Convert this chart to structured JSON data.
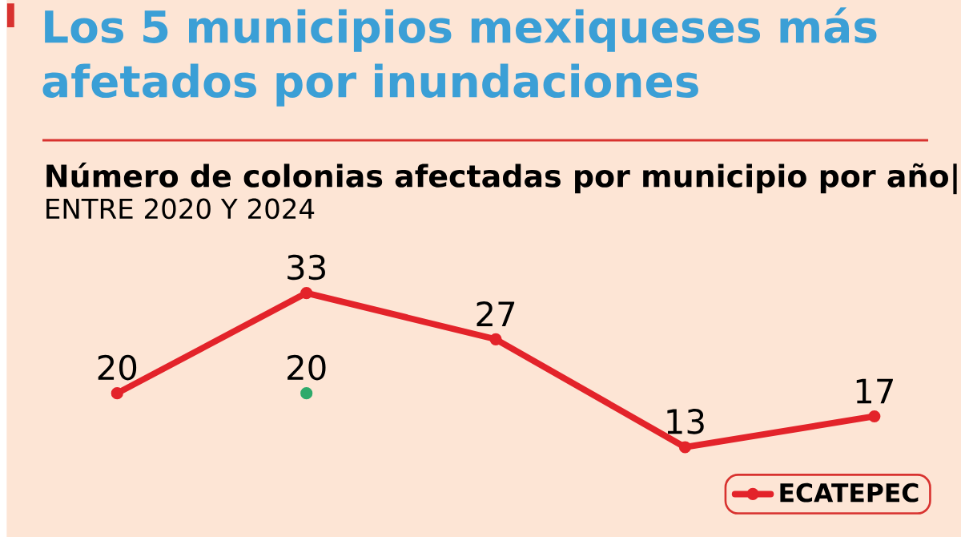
{
  "chart_data": {
    "type": "line",
    "title": "Los 5 municipios mexiqueses más afetados por inundaciones",
    "subtitle": "Número de colonias afectadas por municipio por año|",
    "annotations": [
      "ENTRE 2020 Y 2024"
    ],
    "categories": [
      null,
      null,
      null,
      null,
      null
    ],
    "series": [
      {
        "name": "ECATEPEC",
        "color": "#e3232a",
        "values": [
          20,
          33,
          27,
          13,
          17
        ]
      },
      {
        "color": "#2eaa6b",
        "values": [
          null,
          20,
          null,
          null,
          null
        ]
      }
    ],
    "legend": "bottom right",
    "marker": "circle",
    "data_labels": true
  }
}
